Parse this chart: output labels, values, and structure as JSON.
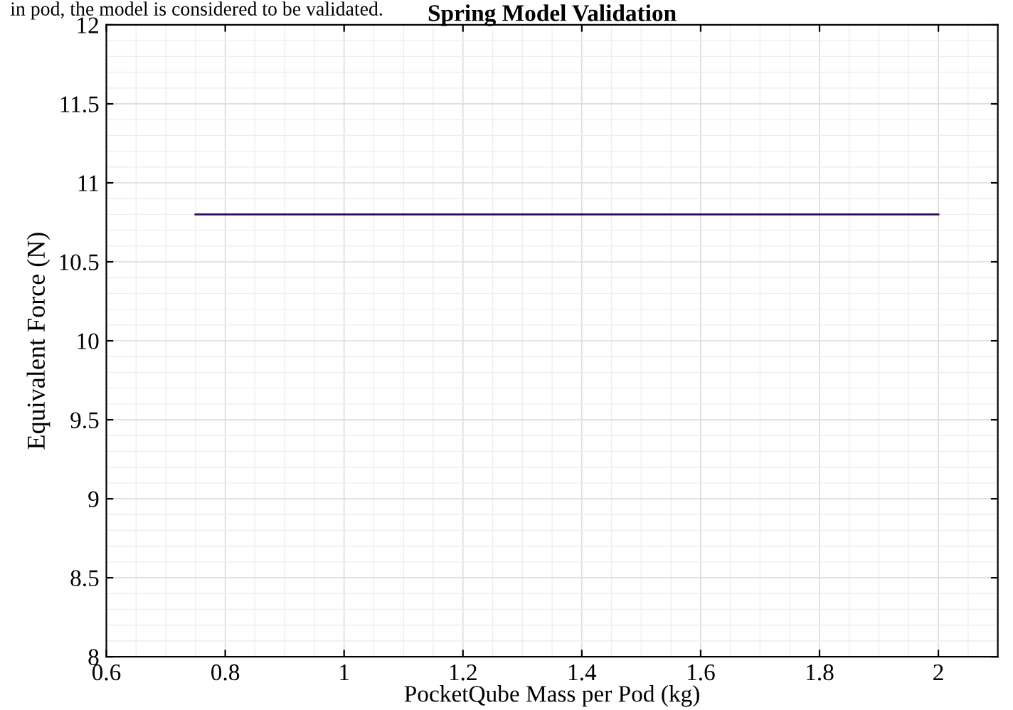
{
  "chart_data": {
    "type": "line",
    "title": "Spring Model Validation",
    "xlabel": "PocketQube Mass per Pod (kg)",
    "ylabel": "Equivalent Force (N)",
    "annotations": [
      "in pod, the model is considered to be validated."
    ],
    "x": [
      0.75,
      2
    ],
    "series": [
      {
        "color": "#2d0a5e",
        "values": [
          10.8,
          10.8
        ]
      }
    ],
    "xlim": [
      0.6,
      2.1
    ],
    "xticks": [
      0.6,
      0.8,
      1,
      1.2,
      1.4,
      1.6,
      1.8,
      2
    ],
    "ylim": [
      8,
      12
    ],
    "yticks": [
      8,
      8.5,
      9,
      9.5,
      10,
      10.5,
      11,
      11.5,
      12
    ],
    "grid": true
  }
}
